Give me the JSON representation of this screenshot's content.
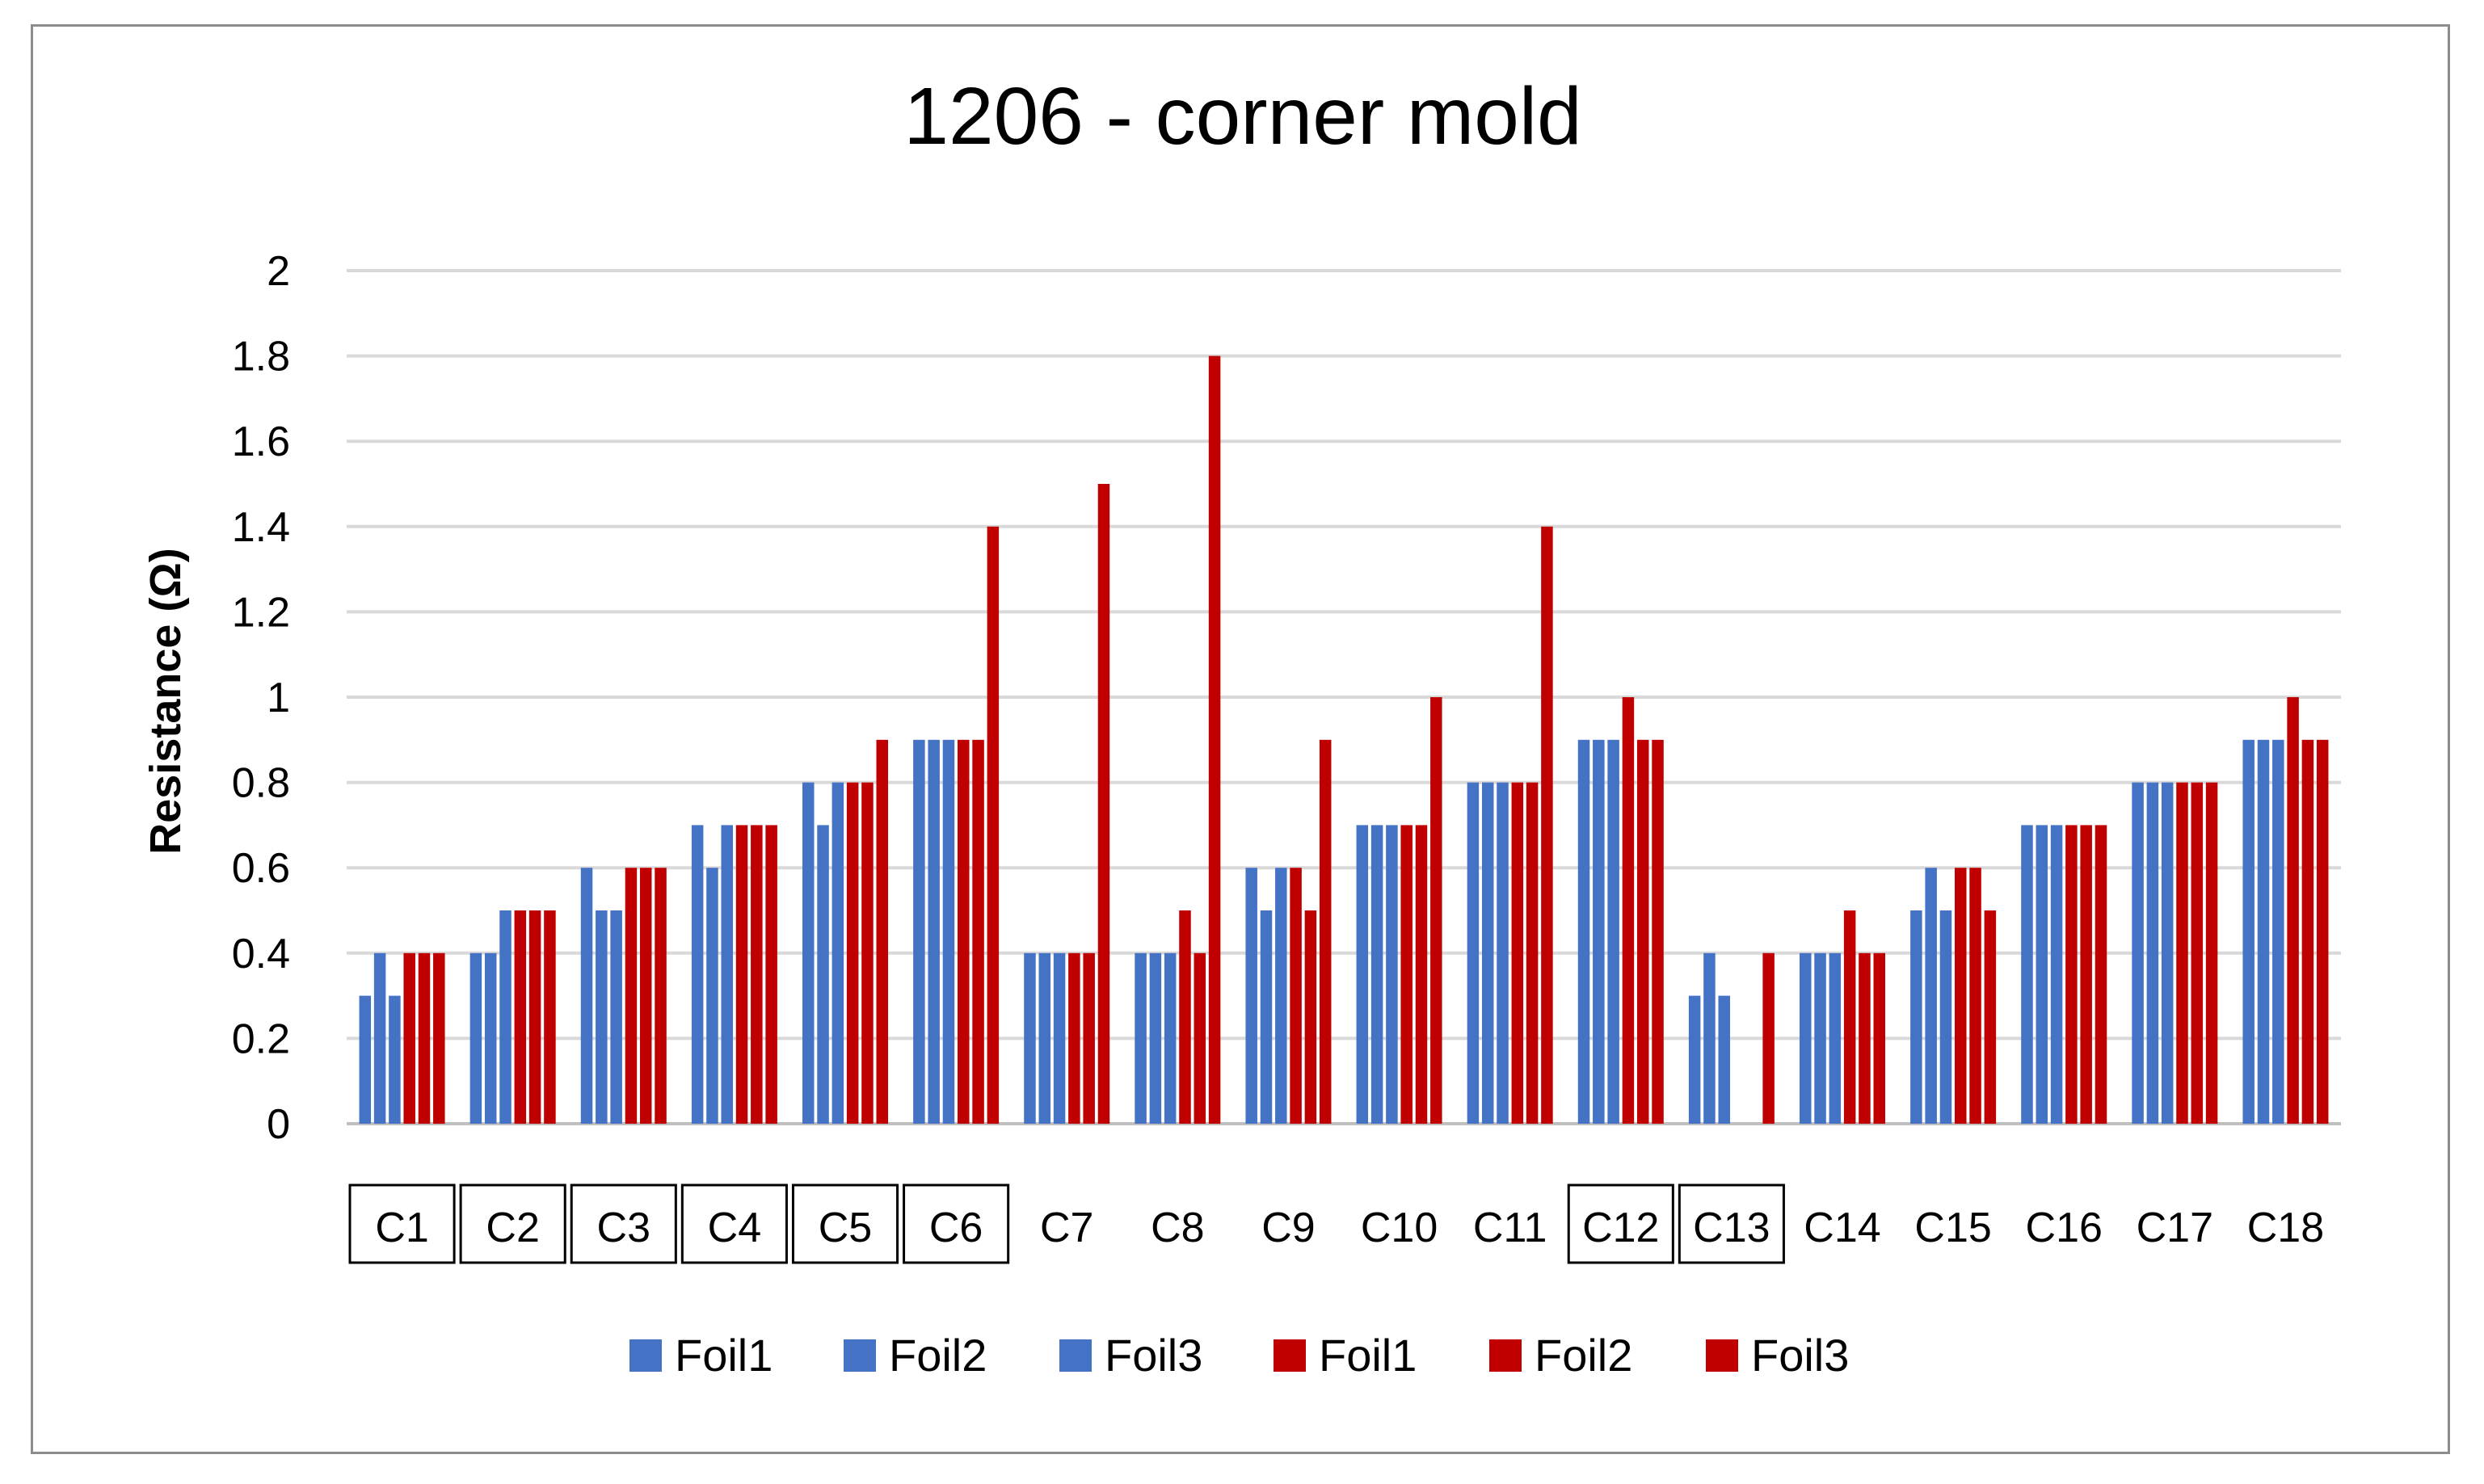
{
  "chart_data": {
    "type": "bar",
    "title": "1206 - corner mold",
    "xlabel": "",
    "ylabel": "Resistance (Ω)",
    "ylim": [
      0,
      2
    ],
    "yticks": [
      0,
      0.2,
      0.4,
      0.6,
      0.8,
      1,
      1.2,
      1.4,
      1.6,
      1.8,
      2
    ],
    "grid": true,
    "legend_position": "bottom",
    "categories": [
      "C1",
      "C2",
      "C3",
      "C4",
      "C5",
      "C6",
      "C7",
      "C8",
      "C9",
      "C10",
      "C11",
      "C12",
      "C13",
      "C14",
      "C15",
      "C16",
      "C17",
      "C18"
    ],
    "boxed_categories": [
      "C1",
      "C2",
      "C3",
      "C4",
      "C5",
      "C6",
      "C12",
      "C13"
    ],
    "series": [
      {
        "name": "Foil1",
        "color": "#4472c4",
        "values": [
          0.3,
          0.4,
          0.6,
          0.7,
          0.8,
          0.9,
          0.4,
          0.4,
          0.6,
          0.7,
          0.8,
          0.9,
          0.3,
          0.4,
          0.5,
          0.7,
          0.8,
          0.9
        ]
      },
      {
        "name": "Foil2",
        "color": "#4472c4",
        "values": [
          0.4,
          0.4,
          0.5,
          0.6,
          0.7,
          0.9,
          0.4,
          0.4,
          0.5,
          0.7,
          0.8,
          0.9,
          0.4,
          0.4,
          0.6,
          0.7,
          0.8,
          0.9
        ]
      },
      {
        "name": "Foil3",
        "color": "#4472c4",
        "values": [
          0.3,
          0.5,
          0.5,
          0.7,
          0.8,
          0.9,
          0.4,
          0.4,
          0.6,
          0.7,
          0.8,
          0.9,
          0.3,
          0.4,
          0.5,
          0.7,
          0.8,
          0.9
        ]
      },
      {
        "name": "Foil1",
        "color": "#c00000",
        "values": [
          0.4,
          0.5,
          0.6,
          0.7,
          0.8,
          0.9,
          0.4,
          0.5,
          0.6,
          0.7,
          0.8,
          1.0,
          0,
          0.5,
          0.6,
          0.7,
          0.8,
          1.0
        ]
      },
      {
        "name": "Foil2",
        "color": "#c00000",
        "values": [
          0.4,
          0.5,
          0.6,
          0.7,
          0.8,
          0.9,
          0.4,
          0.4,
          0.5,
          0.7,
          0.8,
          0.9,
          0,
          0.4,
          0.6,
          0.7,
          0.8,
          0.9
        ]
      },
      {
        "name": "Foil3",
        "color": "#c00000",
        "values": [
          0.4,
          0.5,
          0.6,
          0.7,
          0.9,
          1.4,
          1.5,
          1.8,
          0.9,
          1.0,
          1.4,
          0.9,
          0.4,
          0.4,
          0.5,
          0.7,
          0.8,
          0.9
        ]
      }
    ]
  }
}
